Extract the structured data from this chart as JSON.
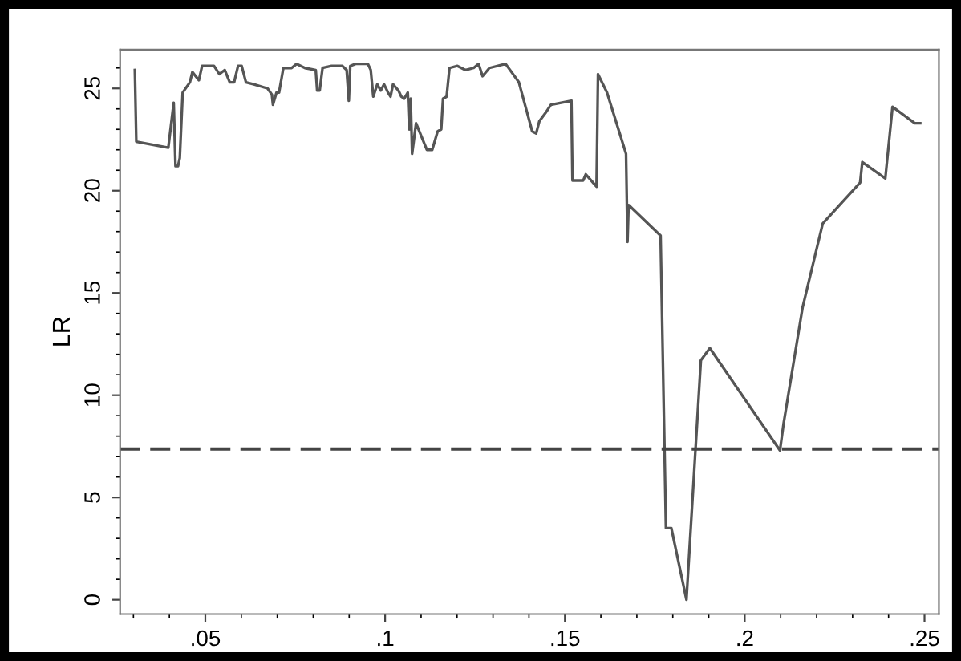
{
  "chart_data": {
    "type": "line",
    "ylabel": "LR",
    "x": [
      0.0304,
      0.0308,
      0.0397,
      0.0412,
      0.0417,
      0.0424,
      0.0429,
      0.0437,
      0.0457,
      0.0464,
      0.0482,
      0.0491,
      0.0524,
      0.0539,
      0.0554,
      0.0568,
      0.058,
      0.0591,
      0.0601,
      0.0613,
      0.0635,
      0.0673,
      0.0685,
      0.0688,
      0.0698,
      0.0705,
      0.0717,
      0.074,
      0.0754,
      0.0777,
      0.0807,
      0.0811,
      0.0818,
      0.0826,
      0.0851,
      0.0881,
      0.0893,
      0.0899,
      0.0903,
      0.0918,
      0.0952,
      0.096,
      0.0967,
      0.0978,
      0.0988,
      0.0997,
      0.1008,
      0.1015,
      0.1022,
      0.1037,
      0.1045,
      0.1053,
      0.1063,
      0.1067,
      0.1071,
      0.1075,
      0.1086,
      0.1116,
      0.1131,
      0.1146,
      0.1156,
      0.1161,
      0.1171,
      0.1179,
      0.1201,
      0.1223,
      0.1246,
      0.126,
      0.1271,
      0.129,
      0.1335,
      0.1372,
      0.1409,
      0.142,
      0.1429,
      0.1446,
      0.1461,
      0.1518,
      0.1521,
      0.1551,
      0.1558,
      0.1588,
      0.1592,
      0.1617,
      0.167,
      0.1674,
      0.1677,
      0.1766,
      0.1781,
      0.1796,
      0.1838,
      0.1878,
      0.1903,
      0.2098,
      0.2108,
      0.2161,
      0.2217,
      0.2321,
      0.2327,
      0.2391,
      0.2411,
      0.2473,
      0.2488
    ],
    "series": [
      {
        "color": "#555555",
        "values": [
          25.9,
          22.4,
          22.1,
          24.3,
          21.2,
          21.2,
          21.6,
          24.8,
          25.3,
          25.8,
          25.4,
          26.1,
          26.1,
          25.7,
          25.9,
          25.3,
          25.3,
          26.1,
          26.1,
          25.3,
          25.2,
          25.0,
          24.7,
          24.2,
          24.8,
          24.8,
          26.0,
          26.0,
          26.2,
          26.0,
          25.9,
          24.9,
          24.9,
          26.0,
          26.1,
          26.1,
          25.9,
          24.4,
          26.1,
          26.2,
          26.2,
          25.9,
          24.6,
          25.2,
          24.9,
          25.2,
          24.8,
          24.6,
          25.2,
          24.9,
          24.6,
          24.5,
          24.8,
          23.0,
          24.5,
          21.8,
          23.3,
          22.0,
          22.0,
          22.9,
          23.0,
          24.5,
          24.6,
          26.0,
          26.1,
          25.9,
          26.0,
          26.2,
          25.6,
          26.0,
          26.2,
          25.3,
          22.9,
          22.8,
          23.4,
          23.8,
          24.2,
          24.4,
          20.5,
          20.5,
          20.8,
          20.2,
          25.7,
          24.8,
          21.8,
          17.5,
          19.3,
          17.8,
          3.5,
          3.5,
          0.0,
          11.7,
          12.3,
          7.3,
          8.6,
          14.3,
          18.4,
          20.4,
          21.4,
          20.6,
          24.1,
          23.3,
          23.3
        ]
      }
    ],
    "xlim": [
      0.0263,
      0.254
    ],
    "ylim": [
      -0.7,
      26.9
    ],
    "xticks": [
      {
        "value": 0.05,
        "label": ".05"
      },
      {
        "value": 0.1,
        "label": ".1"
      },
      {
        "value": 0.15,
        "label": ".15"
      },
      {
        "value": 0.2,
        "label": ".2"
      },
      {
        "value": 0.25,
        "label": ".25"
      }
    ],
    "yticks": [
      0,
      5,
      10,
      15,
      20,
      25
    ],
    "ref_lines": [
      {
        "axis": "y",
        "value": 7.37,
        "color": "#444444",
        "line_style": "dashed"
      }
    ],
    "grid": false,
    "legend": false,
    "marker": "none",
    "line_style": "solid"
  }
}
